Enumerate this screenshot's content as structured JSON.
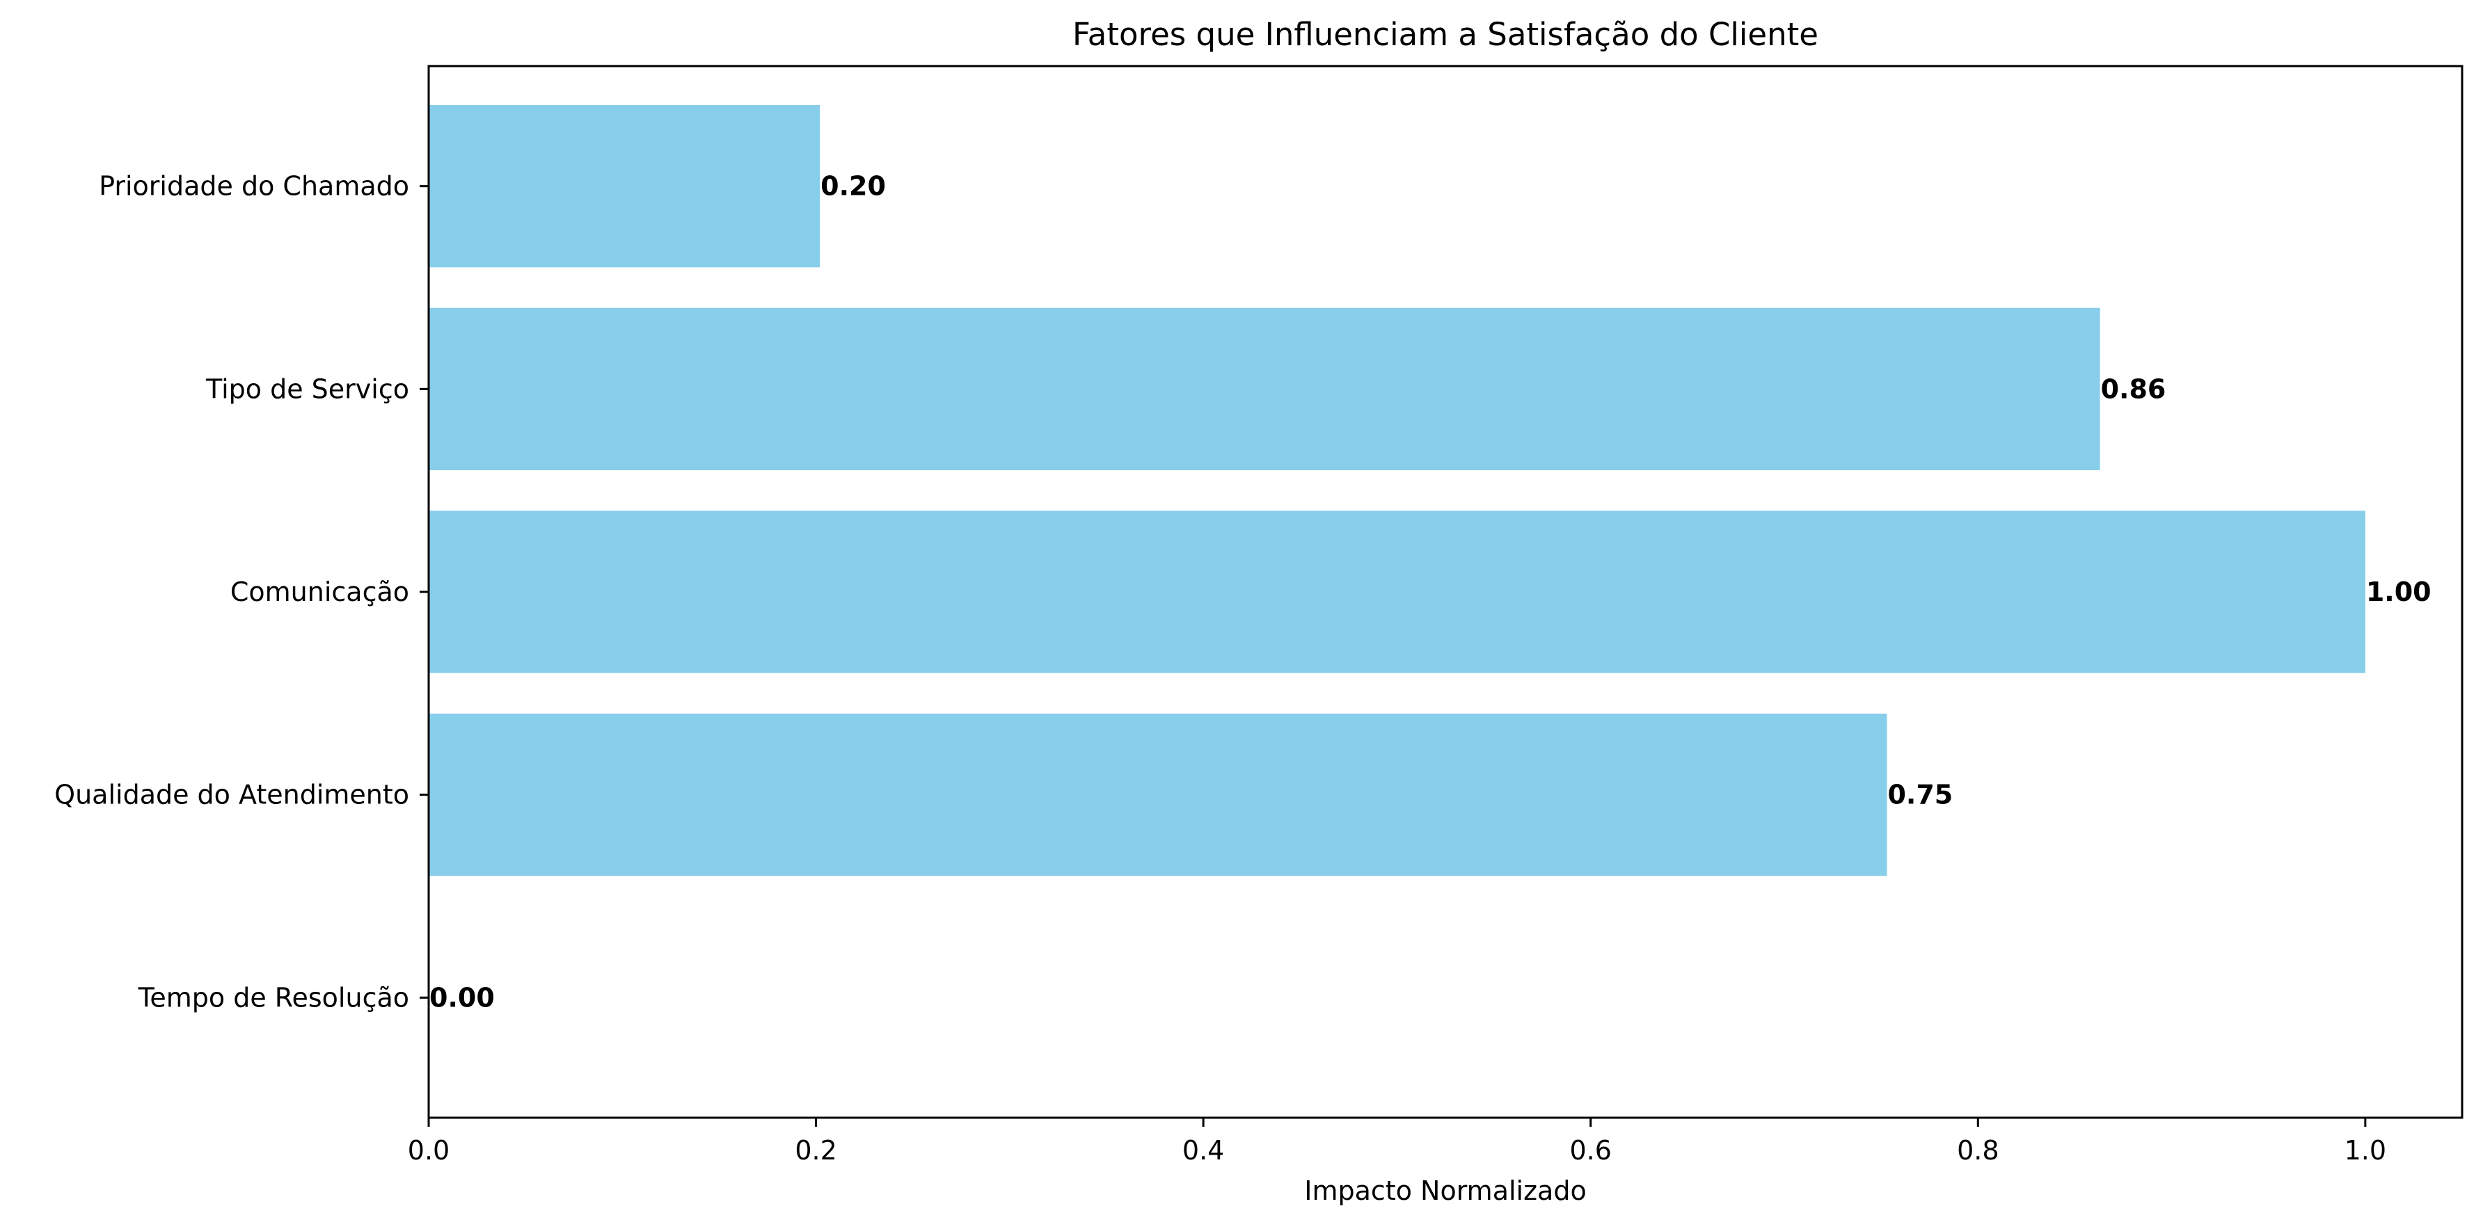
{
  "chart_data": {
    "type": "bar",
    "orientation": "horizontal",
    "title": "Fatores que Influenciam a Satisfação do Cliente",
    "xlabel": "Impacto Normalizado",
    "ylabel": "",
    "categories": [
      "Tempo de Resolução",
      "Qualidade do Atendimento",
      "Comunicação",
      "Tipo de Serviço",
      "Prioridade do Chamado"
    ],
    "values": [
      0.0,
      0.753,
      1.0,
      0.863,
      0.202
    ],
    "value_labels": [
      "0.00",
      "0.75",
      "1.00",
      "0.86",
      "0.20"
    ],
    "xlim": [
      0,
      1.05
    ],
    "xticks": [
      0.0,
      0.2,
      0.4,
      0.6,
      0.8,
      1.0
    ],
    "xtick_labels": [
      "0.0",
      "0.2",
      "0.4",
      "0.6",
      "0.8",
      "1.0"
    ],
    "grid": false,
    "bar_color": "#87ceeb"
  }
}
